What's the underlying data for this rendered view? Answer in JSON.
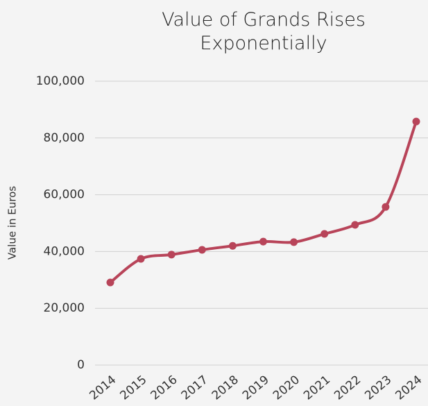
{
  "chart_data": {
    "type": "line",
    "title": "Value of Grands Rises Exponentially",
    "y_label": "Value in Euros",
    "categories": [
      "2014",
      "2015",
      "2016",
      "2017",
      "2018",
      "2019",
      "2020",
      "2021",
      "2022",
      "2023",
      "2024"
    ],
    "series": [
      {
        "name": "Value",
        "color": "#b84459",
        "values": [
          29100,
          37400,
          38900,
          40600,
          42000,
          43500,
          43300,
          46200,
          49400,
          55700,
          85800
        ]
      }
    ],
    "ylim": [
      0,
      100000
    ],
    "yticks": [
      0,
      {
        "value": 20000,
        "label": "20,000"
      },
      {
        "value": 40000,
        "label": "40,000"
      },
      {
        "value": 60000,
        "label": "60,000"
      },
      {
        "value": 80000,
        "label": "80,000"
      },
      {
        "value": 100000,
        "label": "100,000"
      }
    ],
    "grid": true
  }
}
